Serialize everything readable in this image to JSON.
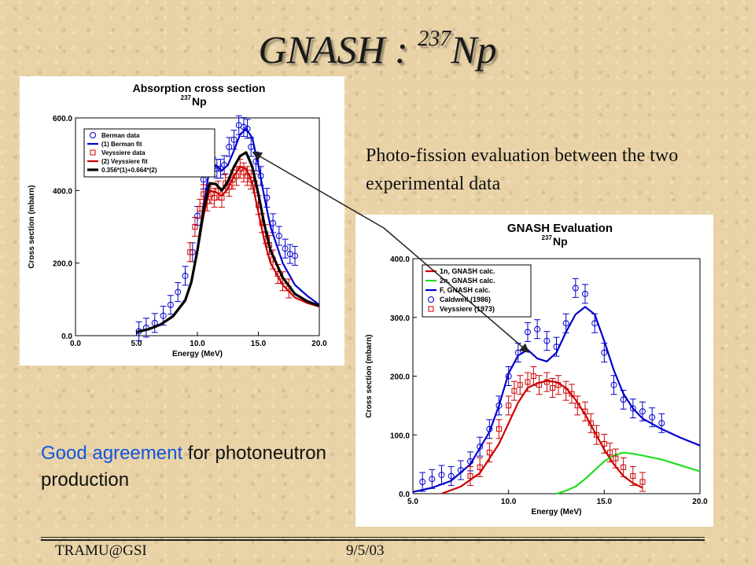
{
  "slide": {
    "title_main": "GNASH : ",
    "title_sup": "237",
    "title_elem": "Np",
    "annotation": "Photo-fission evaluation between the two experimental data",
    "good_highlight": "Good agreement",
    "good_rest": " for photoneutron production",
    "footer_left": "TRAMU@GSI",
    "footer_date": "9/5/03"
  },
  "colors": {
    "blue": "#0000cc",
    "red": "#cc0000",
    "black": "#000000",
    "green": "#22dd22",
    "highlight": "#1155dd"
  },
  "chart_data": [
    {
      "type": "line",
      "title": "Absorption cross section",
      "subtitle_sup": "237",
      "subtitle": "Np",
      "xlabel": "Energy (MeV)",
      "ylabel": "Cross section (mbarn)",
      "xlim": [
        0,
        20
      ],
      "ylim": [
        0,
        600
      ],
      "xticks": [
        0,
        5,
        10,
        15,
        20
      ],
      "xtick_labels": [
        "0.0",
        "5.0",
        "10.0",
        "15.0",
        "20.0"
      ],
      "yticks": [
        0,
        200,
        400,
        600
      ],
      "ytick_labels": [
        "0.0",
        "200.0",
        "400.0",
        "600.0"
      ],
      "legend_position": "top-left",
      "series": [
        {
          "name": "Berman data",
          "kind": "points",
          "marker": "circle",
          "color": "#0000cc",
          "x": [
            5.2,
            5.8,
            6.5,
            7.2,
            7.8,
            8.4,
            9.0,
            9.6,
            10.0,
            10.5,
            11.0,
            11.3,
            11.6,
            11.9,
            12.2,
            12.6,
            13.0,
            13.4,
            13.8,
            14.1,
            14.4,
            14.8,
            15.2,
            15.7,
            16.2,
            16.7,
            17.2,
            17.6,
            18.0
          ],
          "y": [
            12,
            22,
            35,
            55,
            85,
            120,
            165,
            230,
            330,
            430,
            470,
            465,
            460,
            460,
            470,
            520,
            540,
            580,
            575,
            570,
            520,
            480,
            440,
            380,
            310,
            275,
            240,
            225,
            220
          ]
        },
        {
          "name": "(1) Berman fit",
          "kind": "line",
          "color": "#0000cc",
          "x": [
            5,
            6,
            7,
            8,
            9,
            9.5,
            10,
            10.5,
            11,
            11.5,
            12,
            12.5,
            13,
            13.5,
            14,
            14.5,
            15,
            15.5,
            16,
            17,
            18,
            19,
            20
          ],
          "y": [
            10,
            18,
            32,
            55,
            100,
            150,
            240,
            360,
            460,
            470,
            455,
            470,
            510,
            555,
            570,
            545,
            470,
            380,
            300,
            200,
            140,
            110,
            85
          ]
        },
        {
          "name": "Veyssiere data",
          "kind": "points",
          "marker": "square",
          "color": "#cc0000",
          "x": [
            9.4,
            9.8,
            10.2,
            10.5,
            10.8,
            11.1,
            11.4,
            11.7,
            12.0,
            12.3,
            12.6,
            12.9,
            13.2,
            13.5,
            13.8,
            14.1,
            14.4,
            14.7,
            15.0,
            15.3,
            15.6,
            15.9,
            16.2,
            16.6,
            17.0,
            17.5
          ],
          "y": [
            230,
            300,
            350,
            390,
            370,
            390,
            380,
            400,
            380,
            420,
            410,
            430,
            440,
            460,
            450,
            440,
            430,
            420,
            360,
            310,
            280,
            250,
            210,
            170,
            150,
            130
          ]
        },
        {
          "name": "(2) Veyssiere fit",
          "kind": "line",
          "color": "#cc0000",
          "x": [
            5,
            6,
            7,
            8,
            9,
            9.5,
            10,
            10.5,
            11,
            11.5,
            12,
            12.5,
            13,
            13.5,
            14,
            14.5,
            15,
            15.5,
            16,
            17,
            18,
            19,
            20
          ],
          "y": [
            10,
            17,
            30,
            52,
            95,
            145,
            230,
            330,
            400,
            395,
            385,
            405,
            440,
            465,
            460,
            420,
            340,
            260,
            200,
            140,
            105,
            90,
            80
          ]
        },
        {
          "name": "0.356*(1)+0.664*(2)",
          "kind": "line",
          "bold": true,
          "color": "#000000",
          "x": [
            5,
            6,
            7,
            8,
            9,
            9.5,
            10,
            10.5,
            11,
            11.5,
            12,
            12.5,
            13,
            13.5,
            14,
            14.5,
            15,
            15.5,
            16,
            17,
            18,
            19,
            20
          ],
          "y": [
            10,
            18,
            31,
            54,
            97,
            148,
            235,
            345,
            420,
            418,
            400,
            425,
            465,
            495,
            505,
            465,
            390,
            305,
            235,
            160,
            115,
            95,
            82
          ]
        }
      ]
    },
    {
      "type": "line",
      "title": "GNASH Evaluation",
      "subtitle_sup": "237",
      "subtitle": "Np",
      "xlabel": "Energy (MeV)",
      "ylabel": "Cross section (mbarn)",
      "xlim": [
        5,
        20
      ],
      "ylim": [
        0,
        400
      ],
      "xticks": [
        5,
        10,
        15,
        20
      ],
      "xtick_labels": [
        "5.0",
        "10.0",
        "15.0",
        "20.0"
      ],
      "yticks": [
        0,
        100,
        200,
        300,
        400
      ],
      "ytick_labels": [
        "0.0",
        "100.0",
        "200.0",
        "300.0",
        "400.0"
      ],
      "legend_position": "top-left",
      "series": [
        {
          "name": "1n, GNASH calc.",
          "kind": "line",
          "color": "#cc0000",
          "x": [
            6.5,
            7.5,
            8.5,
            9.5,
            10,
            10.5,
            11,
            11.5,
            12,
            12.5,
            13,
            13.5,
            14,
            14.5,
            15,
            15.5,
            16,
            16.5,
            17
          ],
          "y": [
            0,
            12,
            35,
            85,
            120,
            155,
            180,
            188,
            192,
            190,
            180,
            160,
            135,
            105,
            75,
            50,
            30,
            18,
            10
          ]
        },
        {
          "name": "2n, GNASH calc.",
          "kind": "line",
          "color": "#22dd22",
          "x": [
            12.5,
            13,
            13.5,
            14,
            14.5,
            15,
            15.5,
            16,
            16.5,
            17,
            18,
            19,
            20
          ],
          "y": [
            0,
            5,
            12,
            25,
            40,
            55,
            65,
            70,
            68,
            65,
            58,
            48,
            38
          ]
        },
        {
          "name": "F, GNASH calc.",
          "kind": "line",
          "color": "#0000cc",
          "x": [
            5,
            6,
            7,
            8,
            9,
            9.5,
            10,
            10.5,
            11,
            11.5,
            12,
            12.5,
            13,
            13.5,
            14,
            14.5,
            15,
            15.5,
            16,
            16.5,
            17,
            18,
            19,
            20
          ],
          "y": [
            3,
            10,
            22,
            50,
            105,
            150,
            205,
            235,
            245,
            230,
            225,
            240,
            275,
            305,
            318,
            305,
            260,
            210,
            170,
            145,
            128,
            110,
            95,
            82
          ]
        },
        {
          "name": "Caldwell (1986)",
          "kind": "points",
          "marker": "circle",
          "color": "#0000cc",
          "x": [
            5.5,
            6,
            6.5,
            7,
            7.5,
            8,
            8.5,
            9,
            9.5,
            10,
            10.5,
            11,
            11.5,
            12,
            12.5,
            13,
            13.5,
            14,
            14.5,
            15,
            15.5,
            16,
            16.5,
            17,
            17.5,
            18
          ],
          "y": [
            20,
            25,
            32,
            30,
            40,
            55,
            80,
            110,
            150,
            200,
            240,
            275,
            280,
            260,
            250,
            290,
            350,
            340,
            290,
            240,
            185,
            160,
            145,
            140,
            130,
            120
          ]
        },
        {
          "name": "Veyssiere (1973)",
          "kind": "points",
          "marker": "square",
          "color": "#cc0000",
          "x": [
            8,
            8.5,
            9,
            9.5,
            10,
            10.3,
            10.6,
            11,
            11.3,
            11.6,
            12,
            12.3,
            12.6,
            13,
            13.3,
            13.6,
            14,
            14.3,
            14.6,
            15,
            15.3,
            15.6,
            16,
            16.5,
            17
          ],
          "y": [
            30,
            45,
            70,
            110,
            150,
            175,
            185,
            190,
            200,
            185,
            190,
            180,
            185,
            175,
            170,
            150,
            140,
            120,
            100,
            85,
            70,
            60,
            45,
            30,
            20
          ]
        }
      ]
    }
  ]
}
